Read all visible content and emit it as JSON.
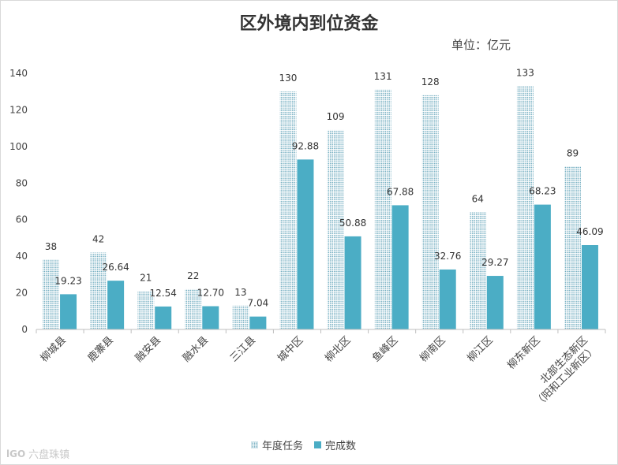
{
  "chart_data": {
    "type": "bar",
    "title": "区外境内到位资金",
    "unit": "单位：亿元",
    "categories": [
      "柳城县",
      "鹿寨县",
      "融安县",
      "融水县",
      "三江县",
      "城中区",
      "柳北区",
      "鱼峰区",
      "柳南区",
      "柳江区",
      "柳东新区",
      "北部生态新区\n（阳和工业新区）"
    ],
    "series": [
      {
        "name": "年度任务",
        "values": [
          38,
          42,
          21,
          22,
          13,
          130,
          109,
          131,
          128,
          64,
          133,
          89
        ],
        "labels": [
          "38",
          "42",
          "21",
          "22",
          "13",
          "130",
          "109",
          "131",
          "128",
          "64",
          "133",
          "89"
        ]
      },
      {
        "name": "完成数",
        "values": [
          19.23,
          26.64,
          12.54,
          12.7,
          7.04,
          92.88,
          50.88,
          67.88,
          32.76,
          29.27,
          68.23,
          46.09
        ],
        "labels": [
          "19.23",
          "26.64",
          "12.54",
          "12.70",
          "7.04",
          "92.88",
          "50.88",
          "67.88",
          "32.76",
          "29.27",
          "68.23",
          "46.09"
        ]
      }
    ],
    "ylim": [
      0,
      140
    ],
    "yticks": [
      "0",
      "20",
      "40",
      "60",
      "80",
      "100",
      "120",
      "140"
    ],
    "xlabel": "",
    "ylabel": "",
    "grid": false,
    "legend_position": "bottom",
    "colors": {
      "task_dot": "#5a9fb5",
      "done": "#4badc5",
      "axis": "#bfbfbf"
    }
  },
  "watermark": {
    "text": "六盘珠镇",
    "logo": "lGO"
  }
}
